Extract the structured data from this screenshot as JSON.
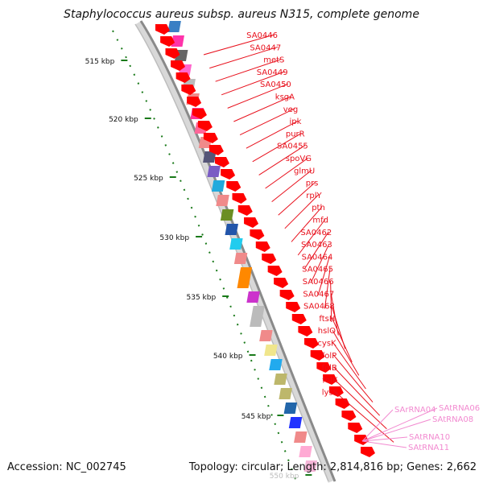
{
  "title": "Staphylococcus aureus subsp. aureus N315, complete genome",
  "footer": {
    "accession": "Accession: NC_002745",
    "summary": "Topology: circular; Length: 2,814,816 bp; Genes: 2,662"
  },
  "scale": {
    "unit": "kbp",
    "ticks": [
      515,
      520,
      525,
      530,
      535,
      540,
      545,
      550
    ]
  },
  "colors": {
    "label_red": "#e8101c",
    "label_pink": "#f28ad0",
    "cds_arrow": "#ff0000",
    "tick_green": "#1a7a1a",
    "backbone": "#8a8a8a"
  },
  "genes": [
    "SA0446",
    "SA0447",
    "metS",
    "SA0449",
    "SA0450",
    "ksgA",
    "veg",
    "ipk",
    "purR",
    "SA0455",
    "spoVG",
    "glmU",
    "prs",
    "rplY",
    "pth",
    "mfd",
    "SA0462",
    "SA0463",
    "SA0464",
    "SA0465",
    "SA0466",
    "SA0467",
    "SA0468",
    "ftsH",
    "hslO",
    "cysK",
    "folP",
    "folB",
    "folK",
    "lysS"
  ],
  "rnas": [
    "SArRNA04",
    "SAtRNA06",
    "SAtRNA08",
    "SAtRNA10",
    "SAtRNA11"
  ]
}
